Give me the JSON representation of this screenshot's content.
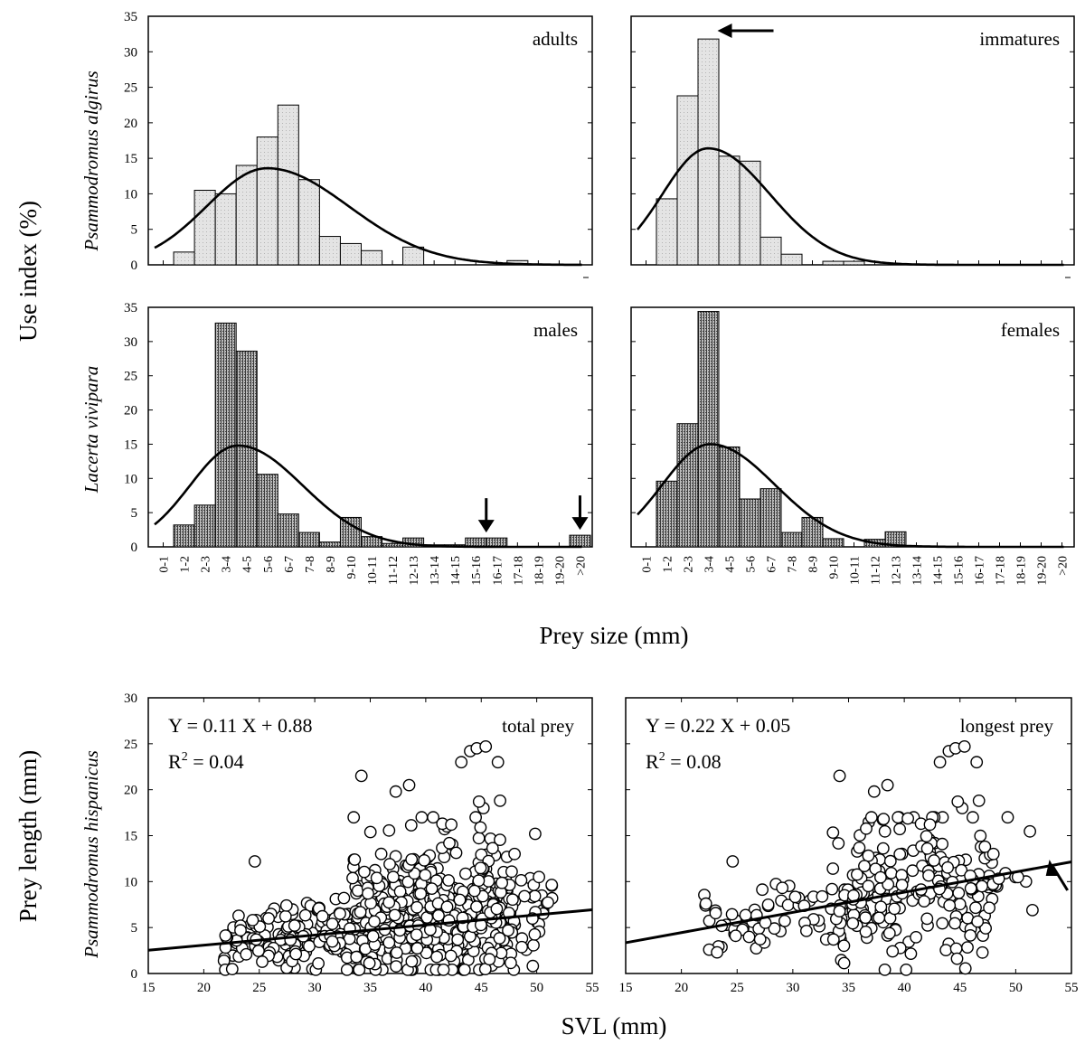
{
  "figure": {
    "hist_ylabel": "Use index (%)",
    "hist_xlabel": "Prey size (mm)",
    "scatter_ylabel": "Prey length (mm)",
    "scatter_xlabel": "SVL (mm)",
    "species_top": "Psammodromus algirus",
    "species_mid": "Lacerta vivipara",
    "species_bottom": "Psammodromus hispanicus"
  },
  "colors": {
    "light_bar": "#e4e4e4",
    "dark_bar": "#8c8c8c",
    "line": "#000000",
    "point_fill": "#ffffff"
  },
  "chart_data": [
    {
      "type": "bar",
      "label": "adults",
      "group": "Psammodromus algirus",
      "categories": [
        "0-1",
        "1-2",
        "2-3",
        "3-4",
        "4-5",
        "5-6",
        "6-7",
        "7-8",
        "8-9",
        "9-10",
        "10-11",
        "11-12",
        "12-13",
        "13-14",
        "14-15",
        "15-16",
        "16-17",
        "17-18",
        "18-19",
        "19-20",
        ">20"
      ],
      "values": [
        0,
        1.8,
        10.5,
        10,
        14,
        18,
        22.5,
        12,
        4,
        3,
        2,
        0,
        2.5,
        0,
        0,
        0,
        0,
        0.6,
        0,
        0,
        0
      ],
      "curve": {
        "mu": 5.4,
        "sigma": 2.9,
        "peak": 13.6
      },
      "ylim": [
        0,
        35
      ],
      "yticks": [
        0,
        5,
        10,
        15,
        20,
        25,
        30,
        35
      ],
      "bar_style": "light",
      "arrows": []
    },
    {
      "type": "bar",
      "label": "immatures",
      "group": "Psammodromus algirus",
      "categories": [
        "0-1",
        "1-2",
        "2-3",
        "3-4",
        "4-5",
        "5-6",
        "6-7",
        "7-8",
        "8-9",
        "9-10",
        "10-11",
        "11-12",
        "12-13",
        "13-14",
        "14-15",
        "15-16",
        "16-17",
        "17-18",
        "18-19",
        "19-20",
        ">20"
      ],
      "values": [
        0,
        9.3,
        23.8,
        31.8,
        15.3,
        14.6,
        3.9,
        1.5,
        0,
        0.5,
        0.5,
        0,
        0,
        0,
        0,
        0,
        0,
        0,
        0,
        0,
        0
      ],
      "curve": {
        "mu": 3.4,
        "sigma": 2.2,
        "peak": 16.4
      },
      "ylim": [
        0,
        35
      ],
      "yticks": [
        0,
        5,
        10,
        15,
        20,
        25,
        30,
        35
      ],
      "bar_style": "light",
      "arrows": [
        {
          "direction": "left",
          "category": 3
        }
      ]
    },
    {
      "type": "bar",
      "label": "males",
      "group": "Lacerta vivipara",
      "categories": [
        "0-1",
        "1-2",
        "2-3",
        "3-4",
        "4-5",
        "5-6",
        "6-7",
        "7-8",
        "8-9",
        "9-10",
        "10-11",
        "11-12",
        "12-13",
        "13-14",
        "14-15",
        "15-16",
        "16-17",
        "17-18",
        "18-19",
        "19-20",
        ">20"
      ],
      "values": [
        0,
        3.2,
        6.1,
        32.7,
        28.6,
        10.6,
        4.8,
        2.1,
        0.7,
        4.3,
        1.5,
        0.5,
        1.3,
        0.3,
        0.3,
        1.3,
        1.3,
        0,
        0,
        0,
        1.7
      ],
      "curve": {
        "mu": 4.0,
        "sigma": 2.3,
        "peak": 14.8
      },
      "ylim": [
        0,
        35
      ],
      "yticks": [
        0,
        5,
        10,
        15,
        20,
        25,
        30,
        35
      ],
      "bar_style": "dark",
      "arrows": [
        {
          "direction": "down",
          "category": 15.5
        },
        {
          "direction": "down",
          "category": 20
        }
      ]
    },
    {
      "type": "bar",
      "label": "females",
      "group": "Lacerta vivipara",
      "categories": [
        "0-1",
        "1-2",
        "2-3",
        "3-4",
        "4-5",
        "5-6",
        "6-7",
        "7-8",
        "8-9",
        "9-10",
        "10-11",
        "11-12",
        "12-13",
        "13-14",
        "14-15",
        "15-16",
        "16-17",
        "17-18",
        "18-19",
        "19-20",
        ">20"
      ],
      "values": [
        0,
        9.6,
        18,
        34.4,
        14.6,
        7,
        8.5,
        2.1,
        4.3,
        1.2,
        0,
        1.1,
        2.2,
        0,
        0,
        0,
        0,
        0,
        0,
        0,
        0
      ],
      "curve": {
        "mu": 3.5,
        "sigma": 2.3,
        "peak": 15
      },
      "ylim": [
        0,
        35
      ],
      "yticks": [
        0,
        5,
        10,
        15,
        20,
        25,
        30,
        35
      ],
      "bar_style": "dark",
      "arrows": []
    },
    {
      "type": "scatter",
      "label": "total prey",
      "group": "Psammodromus hispanicus",
      "equation": "Y = 0.11 X + 0.88",
      "r2_prefix": "R",
      "r2_sup": "2",
      "r2_value": " = 0.04",
      "regression": {
        "slope": 0.11,
        "intercept": 0.88
      },
      "xlim": [
        15,
        55
      ],
      "ylim": [
        0,
        30
      ],
      "xticks": [
        15,
        20,
        25,
        30,
        35,
        40,
        45,
        50,
        55
      ],
      "yticks": [
        0,
        5,
        10,
        15,
        20,
        25,
        30
      ],
      "n_points_approx": 650,
      "x_range": [
        21.5,
        51.5
      ],
      "y_mean_approx": 5.4,
      "outliers": [
        [
          24.6,
          12.2
        ],
        [
          34.2,
          21.5
        ],
        [
          37.3,
          19.8
        ],
        [
          38.5,
          20.5
        ],
        [
          43.2,
          23
        ],
        [
          44,
          24.2
        ],
        [
          44.6,
          24.5
        ],
        [
          45.4,
          24.7
        ],
        [
          46.5,
          23
        ],
        [
          41.5,
          16.3
        ],
        [
          42.3,
          16.2
        ],
        [
          45.2,
          18
        ],
        [
          46.7,
          18.8
        ],
        [
          44.8,
          18.7
        ],
        [
          48,
          13
        ],
        [
          50.2,
          10.5
        ]
      ],
      "arrow": null
    },
    {
      "type": "scatter",
      "label": "longest prey",
      "group": "Psammodromus hispanicus",
      "equation": "Y = 0.22 X + 0.05",
      "r2_prefix": "R",
      "r2_sup": "2",
      "r2_value": " = 0.08",
      "regression": {
        "slope": 0.22,
        "intercept": 0.05
      },
      "xlim": [
        15,
        55
      ],
      "ylim": [
        0,
        30
      ],
      "xticks": [
        15,
        20,
        25,
        30,
        35,
        40,
        45,
        50,
        55
      ],
      "yticks": [
        0,
        5,
        10,
        15,
        20,
        25,
        30
      ],
      "n_points_approx": 280,
      "x_range": [
        21.5,
        51.5
      ],
      "y_mean_approx": 8.2,
      "outliers": [
        [
          22.2,
          7.6
        ],
        [
          24.6,
          12.2
        ],
        [
          34.2,
          21.5
        ],
        [
          37.3,
          19.8
        ],
        [
          38.5,
          20.5
        ],
        [
          43.2,
          23
        ],
        [
          44,
          24.2
        ],
        [
          44.6,
          24.5
        ],
        [
          45.4,
          24.7
        ],
        [
          46.5,
          23
        ],
        [
          41.5,
          16.3
        ],
        [
          42.3,
          16.2
        ],
        [
          45.2,
          18
        ],
        [
          46.7,
          18.8
        ],
        [
          44.8,
          18.7
        ],
        [
          48,
          13
        ],
        [
          50.2,
          10.5
        ],
        [
          51.5,
          6.9
        ],
        [
          22.5,
          2.6
        ],
        [
          23.2,
          2.3
        ]
      ],
      "arrow": {
        "direction": "up-left",
        "x": 54,
        "y": 12
      }
    }
  ]
}
